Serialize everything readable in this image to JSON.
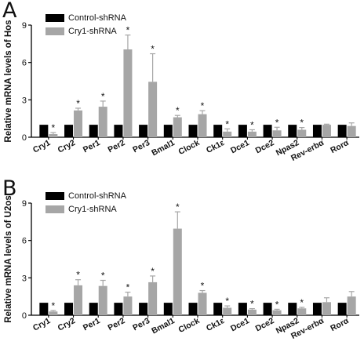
{
  "legend": {
    "control": "Control-shRNA",
    "treatment": "Cry1-shRNA"
  },
  "colors": {
    "control": "#000000",
    "treatment": "#a6a6a6",
    "axis": "#000000"
  },
  "chart_data": [
    {
      "type": "bar",
      "panel_label": "A",
      "ylabel": "Relative mRNA levels of Hos",
      "ylim": [
        0,
        9
      ],
      "yticks": [
        0,
        3,
        6,
        9
      ],
      "categories": [
        "Cry1",
        "Cry2",
        "Per1",
        "Per2",
        "Per3",
        "Bmal1",
        "Clock",
        "Ck1ε",
        "Dce1",
        "Dce2",
        "Npas2",
        "Rev-erbα",
        "Rorα"
      ],
      "significance_marker": "*",
      "series": [
        {
          "name": "Control-shRNA",
          "values": [
            1,
            1,
            1,
            1,
            1,
            1,
            1,
            1,
            1,
            1,
            1,
            1,
            1
          ],
          "errors": [
            0,
            0,
            0,
            0,
            0,
            0,
            0,
            0,
            0,
            0,
            0,
            0,
            0
          ],
          "significant": [
            false,
            false,
            false,
            false,
            false,
            false,
            false,
            false,
            false,
            false,
            false,
            false,
            false
          ]
        },
        {
          "name": "Cry1-shRNA",
          "values": [
            0.25,
            2.15,
            2.45,
            7.05,
            4.45,
            1.6,
            1.85,
            0.45,
            0.45,
            0.55,
            0.6,
            1.0,
            0.9
          ],
          "errors": [
            0.12,
            0.18,
            0.45,
            1.15,
            2.25,
            0.15,
            0.28,
            0.22,
            0.15,
            0.25,
            0.18,
            0.05,
            0.25
          ],
          "significant": [
            true,
            true,
            true,
            true,
            true,
            true,
            true,
            true,
            true,
            true,
            true,
            false,
            false
          ]
        }
      ]
    },
    {
      "type": "bar",
      "panel_label": "B",
      "ylabel": "Relative mRNA levels of U2os",
      "ylim": [
        0,
        9
      ],
      "yticks": [
        0,
        3,
        6,
        9
      ],
      "categories": [
        "Cry1",
        "Cry2",
        "Per1",
        "Per2",
        "Per3",
        "Bmal1",
        "Clock",
        "Ck1ε",
        "Dce1",
        "Dce2",
        "Npas2",
        "Rev-erbα",
        "Rorα"
      ],
      "significance_marker": "*",
      "series": [
        {
          "name": "Control-shRNA",
          "values": [
            1,
            1,
            1,
            1,
            1,
            1,
            1,
            1,
            1,
            1,
            1,
            1,
            1
          ],
          "errors": [
            0,
            0,
            0,
            0,
            0,
            0,
            0,
            0,
            0,
            0,
            0,
            0,
            0
          ],
          "significant": [
            false,
            false,
            false,
            false,
            false,
            false,
            false,
            false,
            false,
            false,
            false,
            false,
            false
          ]
        },
        {
          "name": "Cry1-shRNA",
          "values": [
            0.3,
            2.4,
            2.35,
            1.5,
            2.65,
            6.95,
            1.8,
            0.6,
            0.45,
            0.4,
            0.55,
            1.05,
            1.5
          ],
          "errors": [
            0.08,
            0.45,
            0.45,
            0.35,
            0.5,
            1.35,
            0.18,
            0.15,
            0.08,
            0.08,
            0.08,
            0.35,
            0.4
          ],
          "significant": [
            true,
            true,
            true,
            true,
            true,
            true,
            true,
            true,
            true,
            true,
            true,
            false,
            false
          ]
        }
      ]
    }
  ]
}
